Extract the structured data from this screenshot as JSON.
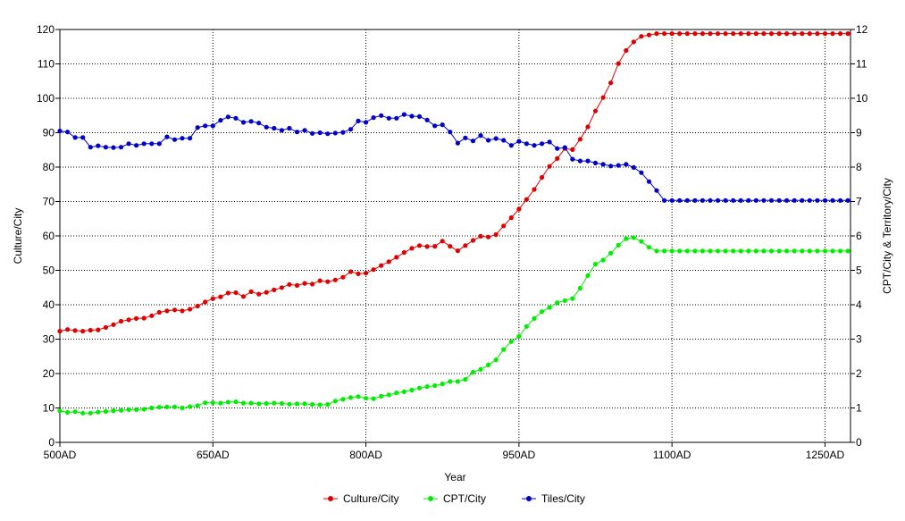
{
  "chart_data": {
    "type": "line",
    "title": "",
    "xlabel": "Year",
    "ylabel_left": "Culture/City",
    "ylabel_right": "CPT/City & Territory/City",
    "grid": true,
    "legend_position": "bottom",
    "x_range": [
      500,
      1275
    ],
    "ylim_left": [
      0,
      120
    ],
    "ylim_right": [
      0,
      12
    ],
    "x_ticks": [
      {
        "value": 500,
        "label": "500AD"
      },
      {
        "value": 650,
        "label": "650AD"
      },
      {
        "value": 800,
        "label": "800AD"
      },
      {
        "value": 950,
        "label": "950AD"
      },
      {
        "value": 1100,
        "label": "1100AD"
      },
      {
        "value": 1250,
        "label": "1250AD"
      }
    ],
    "y_ticks_left": [
      0,
      10,
      20,
      30,
      40,
      50,
      60,
      70,
      80,
      90,
      100,
      110,
      120
    ],
    "y_ticks_right": [
      0,
      1,
      2,
      3,
      4,
      5,
      6,
      7,
      8,
      9,
      10,
      11,
      12
    ],
    "x": [
      500,
      507.5,
      515,
      522.5,
      530,
      537.5,
      545,
      552.5,
      560,
      567.5,
      575,
      582.5,
      590,
      597.5,
      605,
      612.5,
      620,
      627.5,
      635,
      642.5,
      650,
      657.5,
      665,
      672.5,
      680,
      687.5,
      695,
      702.5,
      710,
      717.5,
      725,
      732.5,
      740,
      747.5,
      755,
      762.5,
      770,
      777.5,
      785,
      792.5,
      800,
      807.5,
      815,
      822.5,
      830,
      837.5,
      845,
      852.5,
      860,
      867.5,
      875,
      882.5,
      890,
      897.5,
      905,
      912.5,
      920,
      927.5,
      935,
      942.5,
      950,
      957.5,
      965,
      972.5,
      980,
      987.5,
      995,
      1002.5,
      1010,
      1017.5,
      1025,
      1032.5,
      1040,
      1047.5,
      1055,
      1062.5,
      1070,
      1077.5,
      1085,
      1092.5,
      1100,
      1107.5,
      1115,
      1122.5,
      1130,
      1137.5,
      1145,
      1152.5,
      1160,
      1167.5,
      1175,
      1182.5,
      1190,
      1197.5,
      1205,
      1212.5,
      1220,
      1227.5,
      1235,
      1242.5,
      1250,
      1257.5,
      1265,
      1272.5
    ],
    "series": [
      {
        "name": "Culture/City",
        "axis": "left",
        "color": "#e00000",
        "values": [
          32.3,
          32.8,
          32.5,
          32.3,
          32.6,
          32.7,
          33.4,
          34.2,
          35.2,
          35.6,
          36.0,
          36.1,
          36.8,
          37.8,
          38.2,
          38.5,
          38.2,
          38.7,
          39.6,
          40.8,
          41.8,
          42.3,
          43.4,
          43.5,
          42.4,
          43.8,
          43.1,
          43.6,
          44.3,
          45.0,
          45.9,
          45.6,
          46.2,
          46.0,
          47.0,
          46.7,
          47.2,
          48.0,
          49.6,
          49.0,
          49.2,
          50.2,
          51.4,
          52.5,
          53.8,
          55.2,
          56.4,
          57.2,
          56.9,
          57.0,
          58.5,
          57.0,
          55.7,
          57.2,
          58.7,
          59.9,
          59.7,
          60.4,
          62.9,
          65.3,
          67.8,
          70.6,
          73.5,
          77.0,
          80.2,
          82.5,
          85.4,
          85.1,
          88.1,
          91.7,
          96.3,
          100.2,
          104.5,
          110.1,
          113.9,
          116.4,
          118.0,
          118.4,
          118.8,
          118.8,
          118.8,
          118.8,
          118.8,
          118.8,
          118.8,
          118.8,
          118.8,
          118.8,
          118.8,
          118.8,
          118.8,
          118.8,
          118.8,
          118.8,
          118.8,
          118.8,
          118.8,
          118.8,
          118.8,
          118.8,
          118.8,
          118.8,
          118.8,
          118.8
        ]
      },
      {
        "name": "CPT/City",
        "axis": "right",
        "color": "#00ee00",
        "values": [
          0.92,
          0.87,
          0.89,
          0.85,
          0.85,
          0.88,
          0.9,
          0.92,
          0.93,
          0.95,
          0.95,
          0.96,
          1.0,
          1.02,
          1.03,
          1.03,
          1.0,
          1.04,
          1.07,
          1.15,
          1.15,
          1.14,
          1.17,
          1.18,
          1.14,
          1.14,
          1.12,
          1.13,
          1.14,
          1.13,
          1.11,
          1.12,
          1.12,
          1.1,
          1.09,
          1.1,
          1.2,
          1.25,
          1.3,
          1.33,
          1.28,
          1.27,
          1.34,
          1.38,
          1.44,
          1.47,
          1.52,
          1.58,
          1.62,
          1.65,
          1.7,
          1.77,
          1.77,
          1.83,
          2.04,
          2.12,
          2.25,
          2.4,
          2.7,
          2.93,
          3.08,
          3.37,
          3.6,
          3.8,
          3.92,
          4.06,
          4.12,
          4.18,
          4.48,
          4.85,
          5.18,
          5.3,
          5.5,
          5.73,
          5.92,
          5.95,
          5.84,
          5.67,
          5.56,
          5.56,
          5.56,
          5.56,
          5.56,
          5.56,
          5.56,
          5.56,
          5.56,
          5.56,
          5.56,
          5.56,
          5.56,
          5.56,
          5.56,
          5.56,
          5.56,
          5.56,
          5.56,
          5.56,
          5.56,
          5.56,
          5.56,
          5.56,
          5.56,
          5.56
        ]
      },
      {
        "name": "Tiles/City",
        "axis": "right",
        "color": "#0000cc",
        "values": [
          9.05,
          9.02,
          8.86,
          8.86,
          8.58,
          8.62,
          8.58,
          8.57,
          8.58,
          8.68,
          8.63,
          8.68,
          8.68,
          8.68,
          8.88,
          8.8,
          8.84,
          8.84,
          9.15,
          9.2,
          9.2,
          9.36,
          9.46,
          9.42,
          9.3,
          9.33,
          9.28,
          9.16,
          9.13,
          9.07,
          9.13,
          9.02,
          9.07,
          8.98,
          9.0,
          8.97,
          8.99,
          9.01,
          9.1,
          9.34,
          9.3,
          9.44,
          9.5,
          9.42,
          9.42,
          9.53,
          9.48,
          9.47,
          9.37,
          9.2,
          9.23,
          9.02,
          8.7,
          8.85,
          8.76,
          8.92,
          8.78,
          8.83,
          8.78,
          8.63,
          8.75,
          8.68,
          8.63,
          8.68,
          8.73,
          8.54,
          8.57,
          8.23,
          8.18,
          8.18,
          8.12,
          8.08,
          8.03,
          8.05,
          8.08,
          7.99,
          7.84,
          7.58,
          7.32,
          7.03,
          7.03,
          7.03,
          7.03,
          7.03,
          7.03,
          7.03,
          7.03,
          7.03,
          7.03,
          7.03,
          7.03,
          7.03,
          7.03,
          7.03,
          7.03,
          7.03,
          7.03,
          7.03,
          7.03,
          7.03,
          7.03,
          7.03,
          7.03,
          7.03
        ]
      }
    ]
  }
}
